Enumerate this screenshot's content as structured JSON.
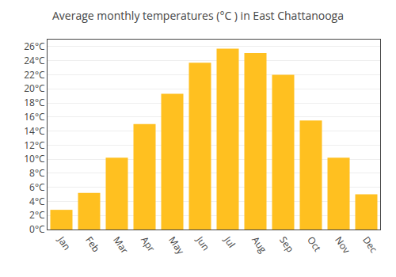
{
  "chart_data": {
    "type": "bar",
    "title": "Average monthly temperatures (°C ) in East Chattanooga",
    "categories": [
      "Jan",
      "Feb",
      "Mar",
      "Apr",
      "May",
      "Jun",
      "Jul",
      "Aug",
      "Sep",
      "Oct",
      "Nov",
      "Dec"
    ],
    "values": [
      2.8,
      5.2,
      10.2,
      15.0,
      19.3,
      23.7,
      25.7,
      25.1,
      22.0,
      15.5,
      10.2,
      5.0
    ],
    "color": "#FFC020",
    "ylim": [
      0,
      27
    ],
    "yticks": [
      {
        "value": 0,
        "label": "0°C"
      },
      {
        "value": 2,
        "label": "2°C"
      },
      {
        "value": 4,
        "label": "4°C"
      },
      {
        "value": 6,
        "label": "6°C"
      },
      {
        "value": 8,
        "label": "8°C"
      },
      {
        "value": 10,
        "label": "10°C"
      },
      {
        "value": 12,
        "label": "12°C"
      },
      {
        "value": 14,
        "label": "14°C"
      },
      {
        "value": 16,
        "label": "16°C"
      },
      {
        "value": 18,
        "label": "18°C"
      },
      {
        "value": 20,
        "label": "20°C"
      },
      {
        "value": 22,
        "label": "22°C"
      },
      {
        "value": 24,
        "label": "24°C"
      },
      {
        "value": 26,
        "label": "26°C"
      }
    ],
    "grid": true
  }
}
